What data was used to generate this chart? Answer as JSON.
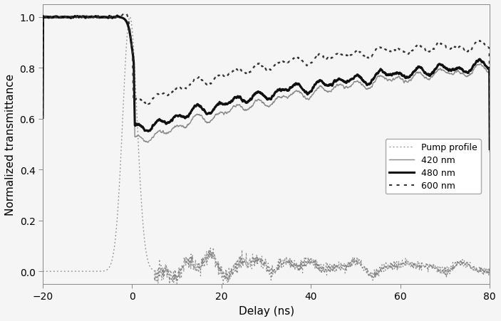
{
  "title": "",
  "xlabel": "Delay (ns)",
  "ylabel": "Normalized transmittance",
  "xlim": [
    -20,
    80
  ],
  "ylim": [
    -0.05,
    1.05
  ],
  "xticks": [
    -20,
    0,
    20,
    40,
    60,
    80
  ],
  "yticks": [
    0.0,
    0.2,
    0.4,
    0.6,
    0.8,
    1.0
  ],
  "legend_entries": [
    "Pump profile",
    "420 nm",
    "480 nm",
    "600 nm"
  ],
  "background_color": "#f5f5f5",
  "pump_color": "#888888",
  "nm420_color": "#888888",
  "nm480_color": "#111111",
  "nm600_color": "#333333"
}
